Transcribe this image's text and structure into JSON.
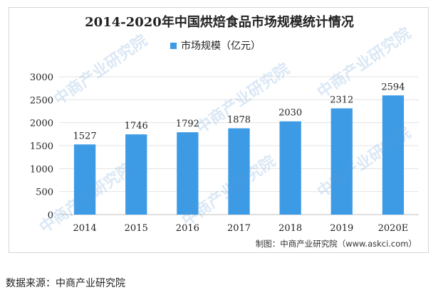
{
  "chart_data": {
    "type": "bar",
    "title": "2014-2020年中国烘焙食品市场规模统计情况",
    "legend": "市场规模（亿元）",
    "legend_position": "top",
    "categories": [
      "2014",
      "2015",
      "2016",
      "2017",
      "2018",
      "2019",
      "2020E"
    ],
    "series": [
      {
        "name": "市场规模（亿元）",
        "values": [
          1527,
          1746,
          1792,
          1878,
          2030,
          2312,
          2594
        ]
      }
    ],
    "ylim": [
      0,
      3000
    ],
    "yticks": [
      0,
      500,
      1000,
      1500,
      2000,
      2500,
      3000
    ],
    "grid": true,
    "bar_color": "#3d9be6"
  },
  "credit": "制图：中商产业研究院（www.askci.com）",
  "source": "数据来源：中商产业研究院",
  "watermark": "中商产业研究院"
}
